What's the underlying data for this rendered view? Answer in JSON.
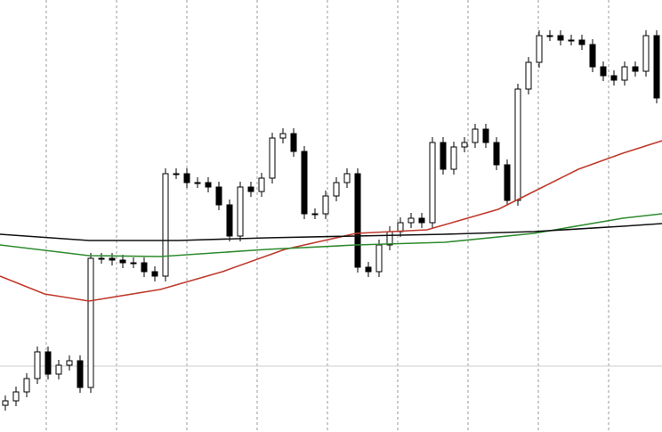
{
  "chart_data": {
    "type": "candlestick",
    "xlim": [
      0,
      744
    ],
    "ylim": [
      0,
      485
    ],
    "xticks": [
      52,
      131,
      210,
      289,
      368,
      447,
      526,
      605,
      684
    ],
    "yticks": [
      74
    ],
    "grid": true,
    "up_color": "#ffffff",
    "down_color": "#000000",
    "wick_color": "#000000",
    "x": [
      6,
      18,
      30,
      42,
      54,
      66,
      78,
      90,
      102,
      114,
      126,
      138,
      150,
      162,
      174,
      186,
      198,
      210,
      222,
      234,
      246,
      258,
      270,
      282,
      294,
      306,
      318,
      330,
      342,
      354,
      366,
      378,
      390,
      402,
      414,
      426,
      438,
      450,
      462,
      474,
      486,
      498,
      510,
      522,
      534,
      546,
      558,
      570,
      582,
      594,
      606,
      618,
      630,
      642,
      654,
      666,
      678,
      690,
      702,
      714,
      726,
      738
    ],
    "open": [
      30,
      35,
      45,
      60,
      90,
      65,
      75,
      80,
      50,
      195,
      195,
      193,
      190,
      190,
      180,
      175,
      290,
      290,
      280,
      280,
      275,
      255,
      220,
      275,
      270,
      285,
      330,
      335,
      315,
      245,
      245,
      265,
      280,
      290,
      185,
      180,
      210,
      225,
      235,
      240,
      235,
      325,
      295,
      320,
      325,
      340,
      325,
      300,
      260,
      385,
      415,
      445,
      445,
      440,
      440,
      435,
      410,
      400,
      395,
      410,
      405,
      445
    ],
    "high": [
      41,
      51,
      66,
      96,
      96,
      81,
      86,
      86,
      201,
      201,
      201,
      199,
      196,
      196,
      186,
      296,
      296,
      296,
      286,
      286,
      281,
      261,
      281,
      281,
      291,
      336,
      341,
      341,
      321,
      251,
      271,
      286,
      296,
      296,
      191,
      216,
      231,
      241,
      246,
      246,
      331,
      331,
      326,
      331,
      346,
      346,
      331,
      306,
      391,
      421,
      451,
      451,
      451,
      446,
      446,
      441,
      416,
      406,
      416,
      416,
      451,
      451
    ],
    "low": [
      24,
      29,
      39,
      54,
      59,
      59,
      69,
      44,
      44,
      189,
      187,
      184,
      184,
      174,
      169,
      169,
      284,
      274,
      274,
      269,
      249,
      214,
      214,
      264,
      264,
      279,
      324,
      309,
      239,
      239,
      239,
      259,
      274,
      179,
      174,
      174,
      204,
      219,
      229,
      229,
      229,
      289,
      289,
      314,
      319,
      319,
      294,
      254,
      254,
      379,
      409,
      439,
      434,
      434,
      429,
      404,
      394,
      389,
      389,
      399,
      399,
      369
    ],
    "close": [
      35,
      45,
      60,
      90,
      65,
      75,
      80,
      50,
      195,
      195,
      193,
      190,
      190,
      180,
      175,
      290,
      290,
      280,
      280,
      275,
      255,
      220,
      275,
      270,
      285,
      330,
      335,
      315,
      245,
      245,
      265,
      280,
      290,
      185,
      180,
      210,
      225,
      235,
      240,
      235,
      325,
      295,
      320,
      325,
      340,
      325,
      300,
      260,
      385,
      415,
      445,
      445,
      440,
      440,
      435,
      410,
      400,
      395,
      410,
      405,
      445,
      375
    ],
    "series": [
      {
        "color": "#c0392b",
        "x": [
          0,
          50,
          100,
          180,
          250,
          320,
          400,
          480,
          560,
          600,
          650,
          700,
          744
        ],
        "values": [
          175,
          155,
          147,
          160,
          180,
          205,
          223,
          227,
          250,
          270,
          295,
          313,
          327
        ]
      },
      {
        "color": "#2e8b2e",
        "x": [
          0,
          100,
          180,
          300,
          400,
          500,
          600,
          700,
          744
        ],
        "values": [
          210,
          198,
          197,
          205,
          210,
          213,
          223,
          240,
          245
        ]
      },
      {
        "color": "#111111",
        "x": [
          0,
          100,
          200,
          300,
          400,
          500,
          600,
          700,
          744
        ],
        "values": [
          222,
          215,
          215,
          218,
          220,
          222,
          225,
          231,
          234
        ]
      }
    ]
  }
}
